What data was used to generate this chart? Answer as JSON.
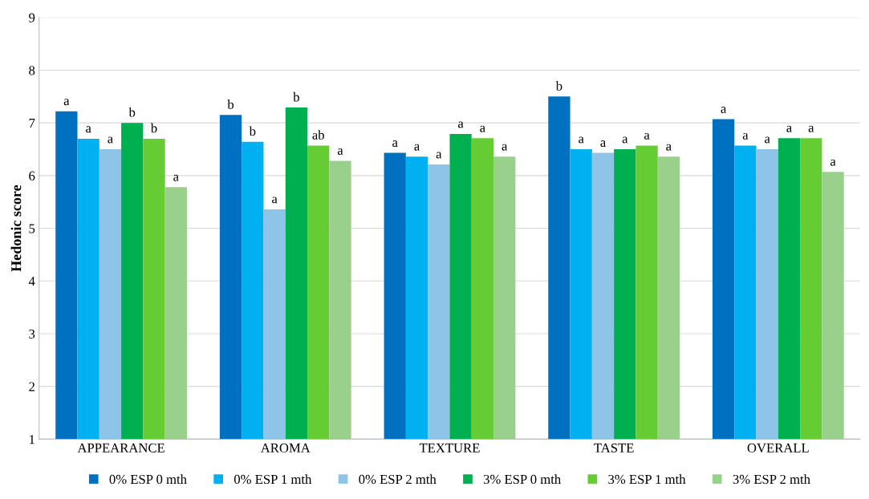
{
  "chart_data": {
    "type": "bar",
    "ylabel": "Hedonic score",
    "categories": [
      "APPEARANCE",
      "AROMA",
      "TEXTURE",
      "TASTE",
      "OVERALL"
    ],
    "series": [
      {
        "name": "0% ESP 0 mth",
        "color": "#0070c0",
        "values": [
          7.22,
          7.15,
          6.43,
          7.5,
          7.07
        ],
        "value_labels": [
          "a",
          "b",
          "a",
          "b",
          "a"
        ]
      },
      {
        "name": "0% ESP 1 mth",
        "color": "#00b0f0",
        "values": [
          6.7,
          6.64,
          6.36,
          6.5,
          6.57
        ],
        "value_labels": [
          "a",
          "b",
          "a",
          "a",
          "a"
        ]
      },
      {
        "name": "0% ESP 2 mth",
        "color": "#8ec4e8",
        "values": [
          6.5,
          5.36,
          6.21,
          6.43,
          6.5
        ],
        "value_labels": [
          "a",
          "a",
          "a",
          "a",
          "a"
        ]
      },
      {
        "name": "3% ESP 0 mth",
        "color": "#00b050",
        "values": [
          7.0,
          7.29,
          6.79,
          6.5,
          6.71
        ],
        "value_labels": [
          "b",
          "b",
          "a",
          "a",
          "a"
        ]
      },
      {
        "name": "3% ESP 1 mth",
        "color": "#66cc33",
        "values": [
          6.7,
          6.57,
          6.71,
          6.57,
          6.71
        ],
        "value_labels": [
          "b",
          "ab",
          "a",
          "a",
          "a"
        ]
      },
      {
        "name": "3% ESP 2 mth",
        "color": "#98d08c",
        "values": [
          5.78,
          6.28,
          6.36,
          6.36,
          6.07
        ],
        "value_labels": [
          "a",
          "a",
          "a",
          "a",
          "a"
        ]
      }
    ],
    "ylim": [
      1,
      9
    ],
    "yticks": [
      1,
      2,
      3,
      4,
      5,
      6,
      7,
      8,
      9
    ],
    "grid": "y",
    "legend": "bottom"
  }
}
